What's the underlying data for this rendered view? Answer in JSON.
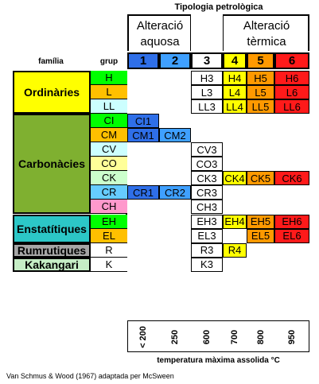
{
  "header": {
    "title": "Tipologia petrològica",
    "aqueous_label": "Alteració aquosa",
    "thermal_label": "Alteració tèrmica",
    "family_header": "família",
    "group_header": "grup",
    "types": [
      "1",
      "2",
      "3",
      "4",
      "5",
      "6"
    ]
  },
  "families": [
    {
      "name": "Ordinàries",
      "color": "#ffff00"
    },
    {
      "name": "Carbonàcies",
      "color": "#7fb030"
    },
    {
      "name": "Enstatítiques",
      "color": "#2cc7c7"
    },
    {
      "name": "Rumrutiques",
      "color": "#a6a6a6"
    },
    {
      "name": "Kakangari",
      "color": "#c6eec6"
    }
  ],
  "groups": [
    {
      "name": "H",
      "color": "#00ff00"
    },
    {
      "name": "L",
      "color": "#ffc000"
    },
    {
      "name": "LL",
      "color": "#ccffff"
    },
    {
      "name": "CI",
      "color": "#00ff00"
    },
    {
      "name": "CM",
      "color": "#ffc000"
    },
    {
      "name": "CV",
      "color": "#ccffff"
    },
    {
      "name": "CO",
      "color": "#ffff99"
    },
    {
      "name": "CK",
      "color": "#ccffcc"
    },
    {
      "name": "CR",
      "color": "#66ccff"
    },
    {
      "name": "CH",
      "color": "#ff99cc"
    },
    {
      "name": "EH",
      "color": "#00ff00"
    },
    {
      "name": "EL",
      "color": "#ffc000"
    },
    {
      "name": "R",
      "color": "#ffffff"
    },
    {
      "name": "K",
      "color": "#ffffff"
    }
  ],
  "cells": [
    [
      null,
      null,
      "H3",
      "H4",
      "H5",
      "H6"
    ],
    [
      null,
      null,
      "L3",
      "L4",
      "L5",
      "L6"
    ],
    [
      null,
      null,
      "LL3",
      "LL4",
      "LL5",
      "LL6"
    ],
    [
      "CI1",
      null,
      null,
      null,
      null,
      null
    ],
    [
      "CM1",
      "CM2",
      null,
      null,
      null,
      null
    ],
    [
      null,
      null,
      "CV3",
      null,
      null,
      null
    ],
    [
      null,
      null,
      "CO3",
      null,
      null,
      null
    ],
    [
      null,
      null,
      "CK3",
      "CK4",
      "CK5",
      "CK6"
    ],
    [
      "CR1",
      "CR2",
      "CR3",
      null,
      null,
      null
    ],
    [
      null,
      null,
      "CH3",
      null,
      null,
      null
    ],
    [
      null,
      null,
      "EH3",
      "EH4",
      "EH5",
      "EH6"
    ],
    [
      null,
      null,
      "EL3",
      null,
      "EL5",
      "EL6"
    ],
    [
      null,
      null,
      "R3",
      "R4",
      null,
      null
    ],
    [
      null,
      null,
      "K3",
      null,
      null,
      null
    ]
  ],
  "type_colors": [
    "#2f6fe8",
    "#3fa0ff",
    "#ffffff",
    "#ffff00",
    "#ff9900",
    "#ff1a1a"
  ],
  "temperatures": [
    "< 200",
    "250",
    "600",
    "700",
    "800",
    "950"
  ],
  "temperature_label": "temperatura màxima assolida °C",
  "source": "Van Schmus & Wood (1967) adaptada per McSween"
}
